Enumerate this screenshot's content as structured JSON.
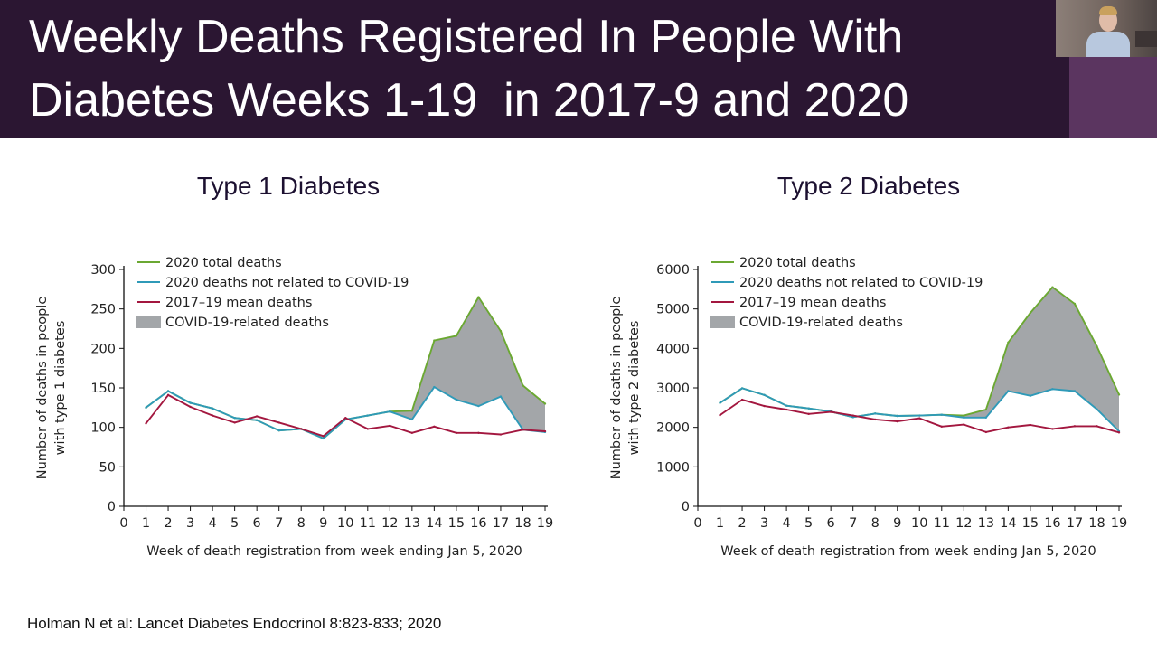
{
  "slide": {
    "title": "Weekly Deaths Registered In People With\nDiabetes Weeks 1-19  in 2017-9 and 2020",
    "citation": "Holman N et al: Lancet Diabetes Endocrinol 8:823-833; 2020",
    "header_color": "#2b1632",
    "accent_panel_color": "#5b3560"
  },
  "webcam": {
    "icon": "presenter-video-thumbnail"
  },
  "colors": {
    "total": "#6ba832",
    "not_covid": "#2f9ab8",
    "mean": "#a3173f",
    "covid_fill": "#a3a6a9"
  },
  "chart_data": [
    {
      "type": "line",
      "title": "Type 1 Diabetes",
      "xlabel": "Week of death registration from week ending Jan 5, 2020",
      "ylabel": "Number of deaths in people with type 1 diabetes",
      "xlim": [
        0,
        19
      ],
      "ylim": [
        0,
        300
      ],
      "xticks": [
        0,
        1,
        2,
        3,
        4,
        5,
        6,
        7,
        8,
        9,
        10,
        11,
        12,
        13,
        14,
        15,
        16,
        17,
        18,
        19
      ],
      "yticks": [
        0,
        50,
        100,
        150,
        200,
        250,
        300
      ],
      "legend_position": "top-left",
      "legend": [
        "2020 total deaths",
        "2020 deaths not related to COVID-19",
        "2017–19 mean deaths",
        "COVID-19-related deaths"
      ],
      "x": [
        1,
        2,
        3,
        4,
        5,
        6,
        7,
        8,
        9,
        10,
        11,
        12,
        13,
        14,
        15,
        16,
        17,
        18,
        19
      ],
      "series": [
        {
          "name": "2020 total deaths",
          "values": [
            125,
            146,
            131,
            124,
            112,
            109,
            96,
            98,
            86,
            110,
            115,
            120,
            121,
            210,
            216,
            265,
            222,
            153,
            130
          ]
        },
        {
          "name": "2020 deaths not related to COVID-19",
          "values": [
            125,
            146,
            131,
            124,
            112,
            109,
            96,
            98,
            86,
            110,
            115,
            120,
            110,
            151,
            135,
            127,
            139,
            97,
            94
          ]
        },
        {
          "name": "2017–19 mean deaths",
          "values": [
            105,
            141,
            126,
            115,
            106,
            114,
            106,
            98,
            89,
            112,
            98,
            102,
            93,
            101,
            93,
            93,
            91,
            97,
            95
          ]
        }
      ]
    },
    {
      "type": "line",
      "title": "Type 2 Diabetes",
      "xlabel": "Week of death registration from week ending Jan 5, 2020",
      "ylabel": "Number of deaths in people with type 2 diabetes",
      "xlim": [
        0,
        19
      ],
      "ylim": [
        0,
        6000
      ],
      "xticks": [
        0,
        1,
        2,
        3,
        4,
        5,
        6,
        7,
        8,
        9,
        10,
        11,
        12,
        13,
        14,
        15,
        16,
        17,
        18,
        19
      ],
      "yticks": [
        0,
        1000,
        2000,
        3000,
        4000,
        5000,
        6000
      ],
      "legend_position": "top-left",
      "legend": [
        "2020 total deaths",
        "2020 deaths not related to COVID-19",
        "2017–19 mean deaths",
        "COVID-19-related deaths"
      ],
      "x": [
        1,
        2,
        3,
        4,
        5,
        6,
        7,
        8,
        9,
        10,
        11,
        12,
        13,
        14,
        15,
        16,
        17,
        18,
        19
      ],
      "series": [
        {
          "name": "2020 total deaths",
          "values": [
            2620,
            2990,
            2820,
            2550,
            2480,
            2400,
            2260,
            2350,
            2290,
            2300,
            2320,
            2300,
            2450,
            4150,
            4900,
            5550,
            5130,
            4050,
            2830
          ]
        },
        {
          "name": "2020 deaths not related to COVID-19",
          "values": [
            2620,
            2990,
            2820,
            2550,
            2480,
            2400,
            2260,
            2350,
            2290,
            2300,
            2320,
            2250,
            2250,
            2920,
            2800,
            2970,
            2920,
            2460,
            1900
          ]
        },
        {
          "name": "2017–19 mean deaths",
          "values": [
            2310,
            2700,
            2540,
            2450,
            2340,
            2390,
            2300,
            2200,
            2150,
            2230,
            2020,
            2070,
            1880,
            2000,
            2060,
            1960,
            2030,
            2030,
            1870
          ]
        }
      ]
    }
  ]
}
